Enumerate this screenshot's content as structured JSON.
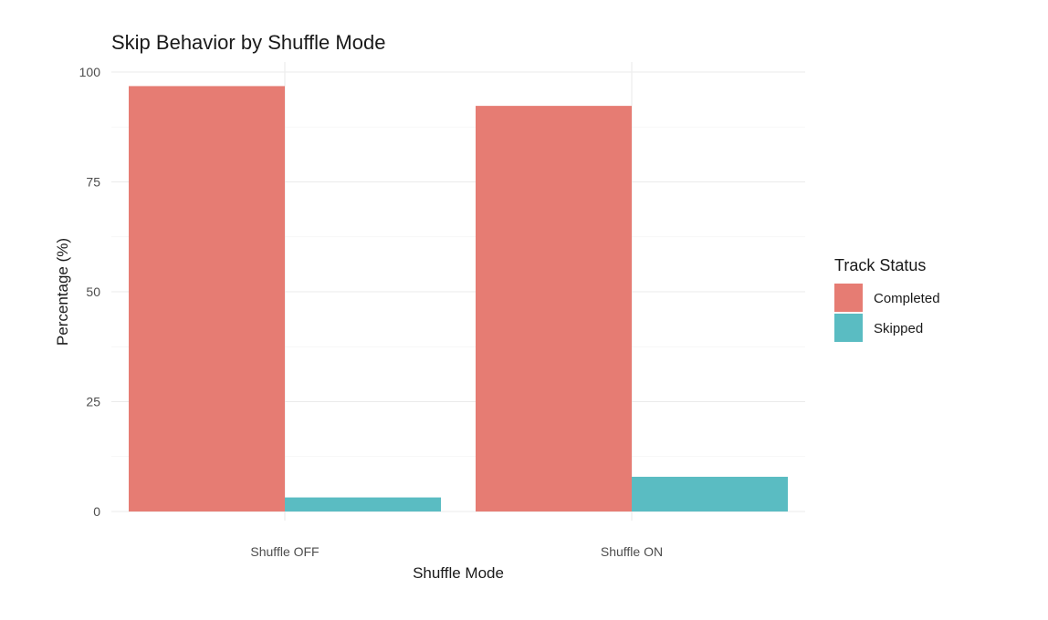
{
  "chart_data": {
    "type": "bar",
    "title": "Skip Behavior by Shuffle Mode",
    "xlabel": "Shuffle Mode",
    "ylabel": "Percentage (%)",
    "categories": [
      "Shuffle OFF",
      "Shuffle ON"
    ],
    "series": [
      {
        "name": "Completed",
        "values": [
          96.8,
          92.3
        ],
        "color": "#E67C73"
      },
      {
        "name": "Skipped",
        "values": [
          3.2,
          7.9
        ],
        "color": "#5ABCC2"
      }
    ],
    "ylim": [
      0,
      100
    ],
    "yticks": [
      0,
      25,
      50,
      75,
      100
    ],
    "grid": true,
    "legend": {
      "title": "Track Status",
      "position": "right"
    }
  }
}
